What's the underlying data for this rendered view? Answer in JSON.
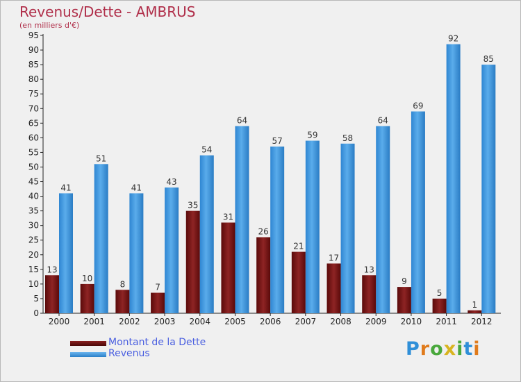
{
  "title": "Revenus/Dette - AMBRUS",
  "subtitle": "(en milliers d'€)",
  "colors": {
    "title": "#b02f4a",
    "dette": "#7a1a1a",
    "revenus": "#3a95de",
    "legend_text": "#4a5fe0"
  },
  "legend": [
    {
      "label": "Montant de la Dette",
      "color": "#6e1010"
    },
    {
      "label": "Revenus",
      "color": "#3a95de"
    }
  ],
  "logo": "Proxiti",
  "chart_data": {
    "type": "bar",
    "title": "Revenus/Dette - AMBRUS",
    "subtitle": "(en milliers d'€)",
    "categories": [
      "2000",
      "2001",
      "2002",
      "2003",
      "2004",
      "2005",
      "2006",
      "2007",
      "2008",
      "2009",
      "2010",
      "2011",
      "2012"
    ],
    "series": [
      {
        "name": "Montant de la Dette",
        "values": [
          13,
          10,
          8,
          7,
          35,
          31,
          26,
          21,
          17,
          13,
          9,
          5,
          1
        ]
      },
      {
        "name": "Revenus",
        "values": [
          41,
          51,
          41,
          43,
          54,
          64,
          57,
          59,
          58,
          64,
          69,
          92,
          85
        ]
      }
    ],
    "ylim": [
      0,
      95
    ],
    "ytick_step": 5,
    "grid": false,
    "legend_position": "bottom-left"
  }
}
